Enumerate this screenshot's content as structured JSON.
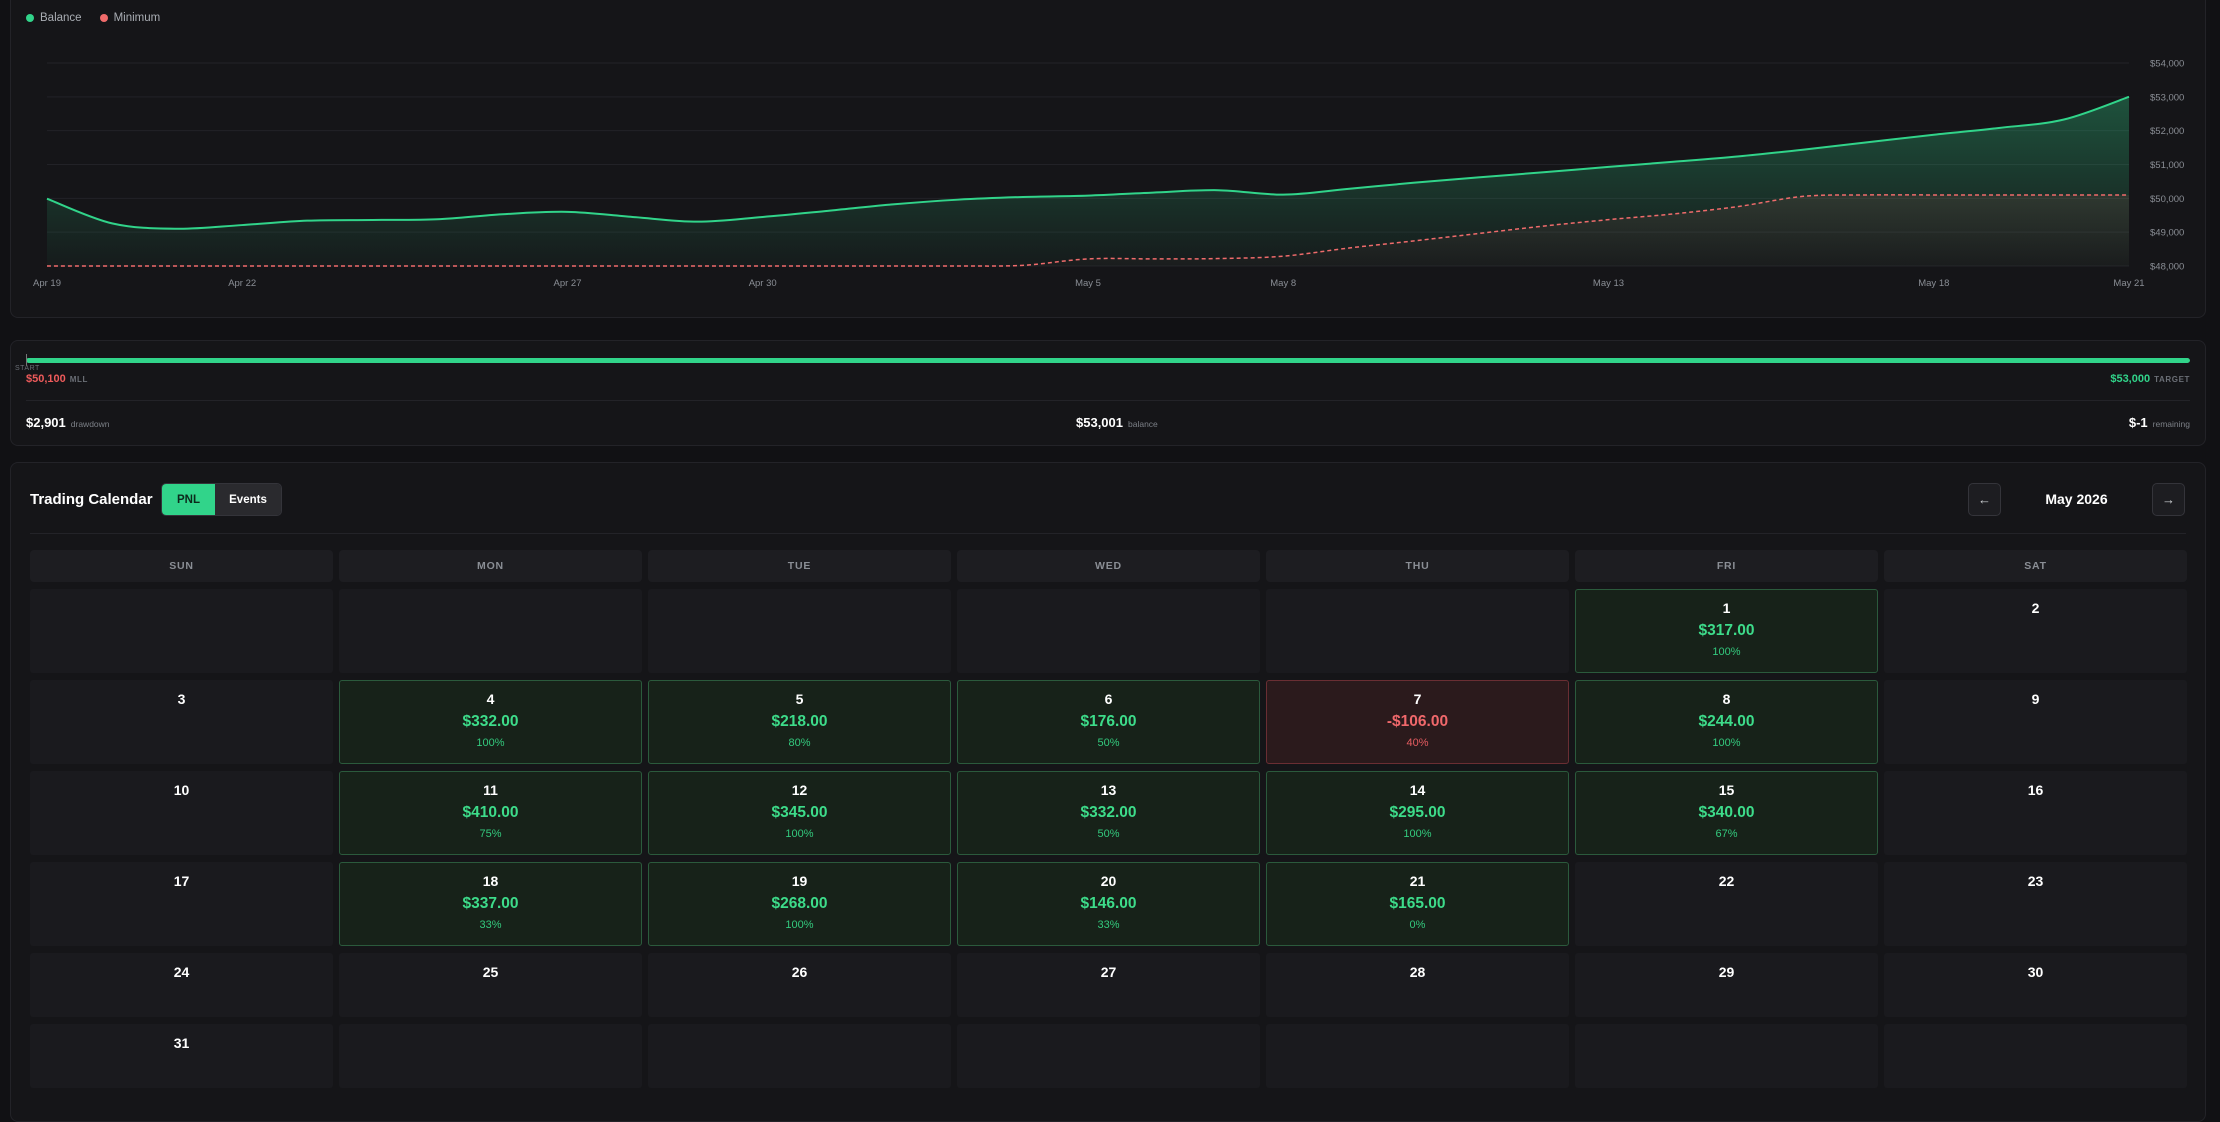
{
  "chart": {
    "legend": [
      {
        "label": "Balance",
        "color": "#31d48a"
      },
      {
        "label": "Minimum",
        "color": "#ef6b6b"
      }
    ],
    "x_labels": [
      "Apr 19",
      "Apr 22",
      "Apr 27",
      "Apr 30",
      "May 5",
      "May 8",
      "May 13",
      "May 18",
      "May 21"
    ],
    "y_labels": [
      "$54,000",
      "$53,000",
      "$52,000",
      "$51,000",
      "$50,000",
      "$49,000",
      "$48,000"
    ]
  },
  "chart_data": {
    "type": "area",
    "x": [
      "Apr 19",
      "Apr 20",
      "Apr 21",
      "Apr 22",
      "Apr 23",
      "Apr 24",
      "Apr 25",
      "Apr 26",
      "Apr 27",
      "Apr 28",
      "Apr 29",
      "Apr 30",
      "May 1",
      "May 2",
      "May 3",
      "May 4",
      "May 5",
      "May 6",
      "May 7",
      "May 8",
      "May 9",
      "May 10",
      "May 11",
      "May 12",
      "May 13",
      "May 14",
      "May 15",
      "May 16",
      "May 17",
      "May 18",
      "May 19",
      "May 20",
      "May 21"
    ],
    "ylim": [
      48000,
      54000
    ],
    "series": [
      {
        "name": "Balance",
        "color": "#31d48a",
        "values": [
          49990,
          49260,
          49100,
          49210,
          49340,
          49360,
          49380,
          49530,
          49600,
          49450,
          49310,
          49450,
          49630,
          49820,
          49960,
          50040,
          50080,
          50170,
          50240,
          50110,
          50280,
          50460,
          50620,
          50770,
          50930,
          51080,
          51240,
          51440,
          51660,
          51880,
          52080,
          52330,
          53001
        ]
      },
      {
        "name": "Minimum",
        "color": "#ef6b6b",
        "values": [
          48000,
          48000,
          48000,
          48000,
          48000,
          48000,
          48000,
          48000,
          48000,
          48000,
          48000,
          48000,
          48000,
          48000,
          48000,
          48020,
          48210,
          48210,
          48220,
          48290,
          48530,
          48740,
          48960,
          49180,
          49370,
          49540,
          49760,
          50060,
          50100,
          50100,
          50100,
          50100,
          50100
        ]
      }
    ]
  },
  "progress": {
    "start_label": "START",
    "mll_value": "$50,100",
    "mll_label": "MLL",
    "target_value": "$53,000",
    "target_label": "TARGET",
    "fill_fraction": 1.0,
    "drawdown_value": "$2,901",
    "drawdown_label": "drawdown",
    "balance_value": "$53,001",
    "balance_label": "balance",
    "remaining_value": "$-1",
    "remaining_label": "remaining"
  },
  "calendar": {
    "title": "Trading Calendar",
    "toggle_pnl": "PNL",
    "toggle_events": "Events",
    "prev_icon": "arrow-left-icon",
    "next_icon": "arrow-right-icon",
    "month": "May 2026",
    "weekdays": [
      "SUN",
      "MON",
      "TUE",
      "WED",
      "THU",
      "FRI",
      "SAT"
    ],
    "weeks": [
      [
        null,
        null,
        null,
        null,
        null,
        {
          "day": "1",
          "pnl": "$317.00",
          "rate": "100%",
          "type": "profit"
        },
        {
          "day": "2"
        }
      ],
      [
        {
          "day": "3"
        },
        {
          "day": "4",
          "pnl": "$332.00",
          "rate": "100%",
          "type": "profit"
        },
        {
          "day": "5",
          "pnl": "$218.00",
          "rate": "80%",
          "type": "profit"
        },
        {
          "day": "6",
          "pnl": "$176.00",
          "rate": "50%",
          "type": "profit"
        },
        {
          "day": "7",
          "pnl": "-$106.00",
          "rate": "40%",
          "type": "loss"
        },
        {
          "day": "8",
          "pnl": "$244.00",
          "rate": "100%",
          "type": "profit"
        },
        {
          "day": "9"
        }
      ],
      [
        {
          "day": "10"
        },
        {
          "day": "11",
          "pnl": "$410.00",
          "rate": "75%",
          "type": "profit"
        },
        {
          "day": "12",
          "pnl": "$345.00",
          "rate": "100%",
          "type": "profit"
        },
        {
          "day": "13",
          "pnl": "$332.00",
          "rate": "50%",
          "type": "profit"
        },
        {
          "day": "14",
          "pnl": "$295.00",
          "rate": "100%",
          "type": "profit"
        },
        {
          "day": "15",
          "pnl": "$340.00",
          "rate": "67%",
          "type": "profit"
        },
        {
          "day": "16"
        }
      ],
      [
        {
          "day": "17"
        },
        {
          "day": "18",
          "pnl": "$337.00",
          "rate": "33%",
          "type": "profit"
        },
        {
          "day": "19",
          "pnl": "$268.00",
          "rate": "100%",
          "type": "profit"
        },
        {
          "day": "20",
          "pnl": "$146.00",
          "rate": "33%",
          "type": "profit"
        },
        {
          "day": "21",
          "pnl": "$165.00",
          "rate": "0%",
          "type": "profit"
        },
        {
          "day": "22"
        },
        {
          "day": "23"
        }
      ],
      [
        {
          "day": "24"
        },
        {
          "day": "25"
        },
        {
          "day": "26"
        },
        {
          "day": "27"
        },
        {
          "day": "28"
        },
        {
          "day": "29"
        },
        {
          "day": "30"
        }
      ],
      [
        {
          "day": "31"
        },
        null,
        null,
        null,
        null,
        null,
        null
      ]
    ]
  },
  "colors": {
    "accent_green": "#31d48a",
    "loss_red": "#ef5b5b",
    "background": "#111114",
    "panel": "#151518"
  }
}
